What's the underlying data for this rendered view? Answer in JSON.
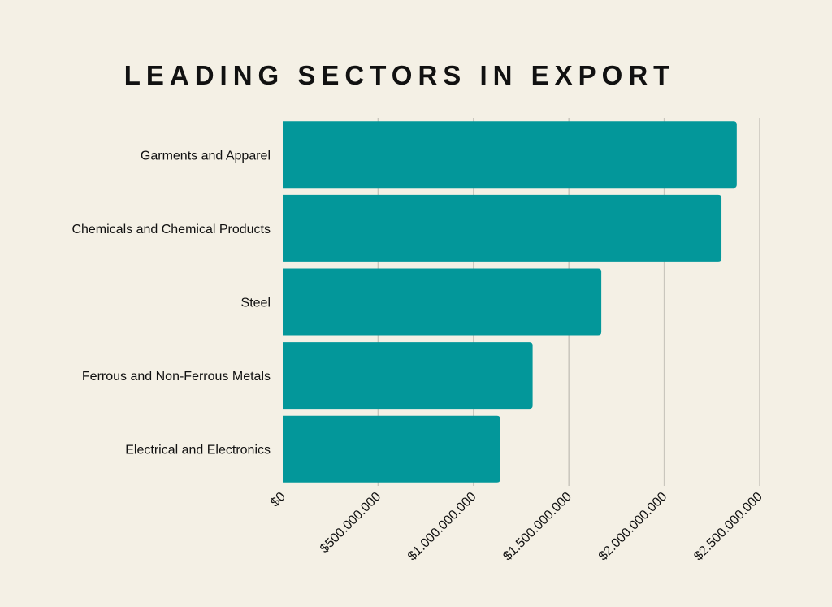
{
  "chart_data": {
    "type": "bar",
    "orientation": "horizontal",
    "title": "LEADING SECTORS IN EXPORT",
    "xlabel": "",
    "ylabel": "",
    "categories": [
      "Garments and Apparel",
      "Chemicals and Chemical Products",
      "Steel",
      "Ferrous and Non-Ferrous Metals",
      "Electrical and Electronics"
    ],
    "values": [
      2380000000,
      2300000000,
      1670000000,
      1310000000,
      1140000000
    ],
    "xlim": [
      0,
      2500000000
    ],
    "x_ticks": [
      0,
      500000000,
      1000000000,
      1500000000,
      2000000000,
      2500000000
    ],
    "x_tick_labels": [
      "$0",
      "$500.000.000",
      "$1.000.000.000",
      "$1.500.000.000",
      "$2.000.000.000",
      "$2.500.000.000"
    ],
    "grid": true,
    "legend": "none",
    "colors": {
      "bar": "#03979a",
      "background": "#f4f0e5",
      "grid": "#c9c6bd",
      "text": "#111111"
    }
  }
}
